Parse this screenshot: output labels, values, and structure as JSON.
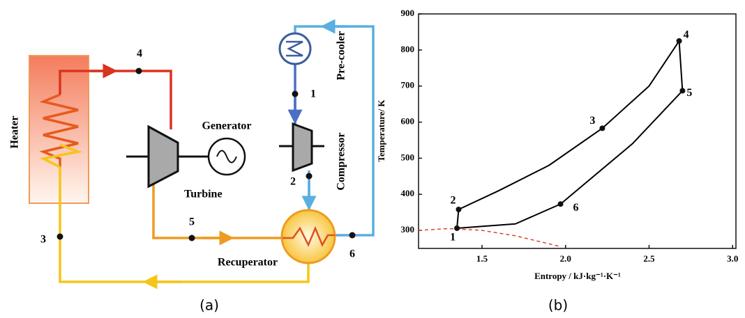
{
  "diagram": {
    "heater": "Heater",
    "generator": "Generator",
    "turbine": "Turbine",
    "recuperator": "Recuperator",
    "pre_cooler": "Pre-cooler",
    "compressor": "Compressor",
    "points": [
      "1",
      "2",
      "3",
      "4",
      "5",
      "6"
    ]
  },
  "captions": [
    "(a)",
    "(b)"
  ],
  "chart_data": {
    "type": "line",
    "x_label": "Entropy / kJ·kg⁻¹·K⁻¹",
    "y_label": "Temperature/ K",
    "xlim": [
      1.12,
      3.02
    ],
    "xticks": [
      1.5,
      {
        "value": 2.0,
        "label": "2.0"
      },
      2.5,
      {
        "value": 3.0,
        "label": "3.0"
      }
    ],
    "ylim": [
      250,
      900
    ],
    "yticks": [
      300,
      400,
      500,
      600,
      700,
      800,
      900
    ],
    "series": [
      {
        "color": "#000000",
        "style": "solid",
        "x": [
          1.35,
          1.36,
          1.6,
          1.9,
          2.22,
          2.5,
          2.68,
          2.7,
          2.4,
          1.97,
          1.7,
          1.35
        ],
        "values": [
          306,
          358,
          410,
          480,
          583,
          700,
          825,
          687,
          540,
          373,
          318,
          306
        ]
      },
      {
        "color": "#d9442b",
        "style": "dashed",
        "x": [
          1.12,
          1.3,
          1.5,
          1.7,
          1.97
        ],
        "values": [
          300,
          305,
          300,
          285,
          255
        ]
      }
    ],
    "states": {
      "labels": [
        "1",
        "2",
        "3",
        "4",
        "5",
        "6"
      ],
      "x": [
        1.35,
        1.36,
        2.22,
        2.68,
        2.7,
        1.97
      ],
      "values": [
        306,
        358,
        583,
        825,
        687,
        373
      ]
    }
  }
}
